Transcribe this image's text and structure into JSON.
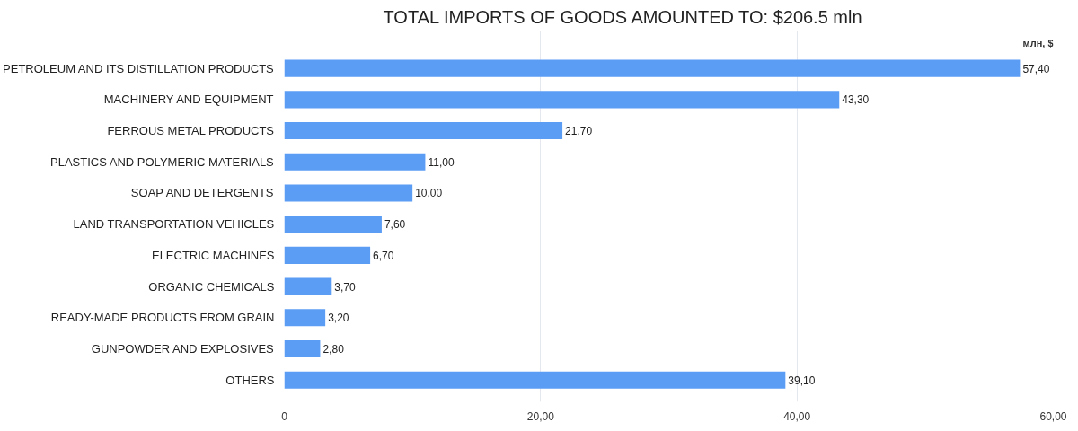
{
  "chart_data": {
    "type": "bar",
    "orientation": "horizontal",
    "title": "TOTAL IMPORTS OF GOODS AMOUNTED TO: $206.5 mln",
    "xlabel": "млн, $",
    "categories": [
      "PETROLEUM AND ITS DISTILLATION PRODUCTS",
      "MACHINERY AND EQUIPMENT",
      "FERROUS METAL PRODUCTS",
      "PLASTICS AND POLYMERIC MATERIALS",
      "SOAP AND DETERGENTS",
      "LAND TRANSPORTATION VEHICLES",
      "ELECTRIC MACHINES",
      "ORGANIC CHEMICALS",
      "READY-MADE PRODUCTS FROM GRAIN",
      "GUNPOWDER AND EXPLOSIVES",
      "OTHERS"
    ],
    "values": [
      57.4,
      43.3,
      21.7,
      11.0,
      10.0,
      7.6,
      6.7,
      3.7,
      3.2,
      2.8,
      39.1
    ],
    "value_labels": [
      "57,40",
      "43,30",
      "21,70",
      "11,00",
      "10,00",
      "7,60",
      "6,70",
      "3,70",
      "3,20",
      "2,80",
      "39,10"
    ],
    "color": "#5b9cf5",
    "xlim": [
      0,
      60
    ],
    "xticks": [
      0,
      {
        "value": 20,
        "label": "20,00"
      },
      {
        "value": 40,
        "label": "40,00"
      },
      {
        "value": 60,
        "label": "60,00"
      }
    ],
    "grid": "x"
  }
}
